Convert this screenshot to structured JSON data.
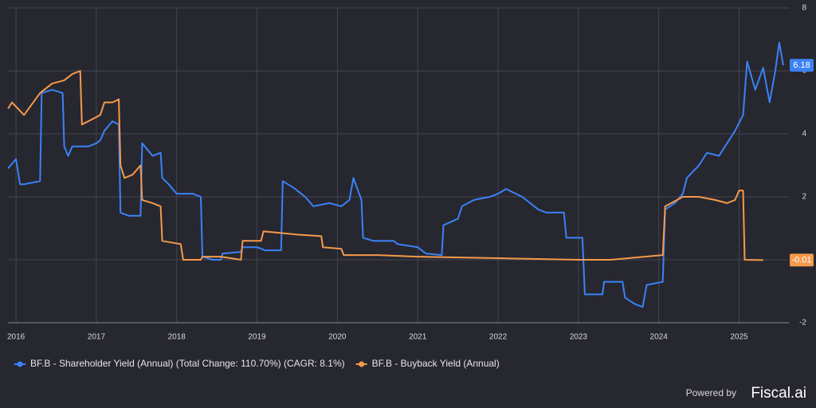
{
  "chart_data": {
    "type": "line",
    "xlim": [
      2015.9,
      2025.62
    ],
    "xticks": [
      2016,
      2017,
      2018,
      2019,
      2020,
      2021,
      2022,
      2023,
      2024,
      2025
    ],
    "ylim": [
      -2,
      8
    ],
    "yticks": [
      -2,
      0,
      2,
      4,
      6,
      8
    ],
    "grid": true,
    "series": [
      {
        "name": "BF.B - Shareholder Yield (Annual) (Total Change: 110.70%) (CAGR: 8.1%)",
        "color": "#3b82f6",
        "last_label": "6.18",
        "x": [
          2015.9,
          2016.0,
          2016.05,
          2016.1,
          2016.3,
          2016.32,
          2016.45,
          2016.58,
          2016.6,
          2016.65,
          2016.7,
          2016.9,
          2017.0,
          2017.05,
          2017.1,
          2017.2,
          2017.28,
          2017.3,
          2017.4,
          2017.55,
          2017.57,
          2017.7,
          2017.8,
          2017.82,
          2017.9,
          2018.0,
          2018.2,
          2018.3,
          2018.32,
          2018.45,
          2018.55,
          2018.57,
          2018.8,
          2018.82,
          2019.0,
          2019.1,
          2019.3,
          2019.32,
          2019.45,
          2019.6,
          2019.7,
          2019.9,
          2020.05,
          2020.15,
          2020.2,
          2020.3,
          2020.32,
          2020.45,
          2020.7,
          2020.75,
          2021.0,
          2021.1,
          2021.3,
          2021.32,
          2021.5,
          2021.55,
          2021.7,
          2021.9,
          2022.0,
          2022.1,
          2022.3,
          2022.5,
          2022.6,
          2022.82,
          2022.85,
          2023.05,
          2023.08,
          2023.3,
          2023.32,
          2023.55,
          2023.58,
          2023.7,
          2023.8,
          2023.85,
          2024.05,
          2024.08,
          2024.2,
          2024.3,
          2024.35,
          2024.5,
          2024.6,
          2024.75,
          2024.85,
          2024.95,
          2025.05,
          2025.1,
          2025.2,
          2025.3,
          2025.38,
          2025.45,
          2025.5,
          2025.55
        ],
        "values": [
          2.9,
          3.2,
          2.4,
          2.4,
          2.5,
          5.3,
          5.4,
          5.3,
          3.6,
          3.3,
          3.6,
          3.6,
          3.7,
          3.8,
          4.1,
          4.4,
          4.3,
          1.5,
          1.4,
          1.4,
          3.7,
          3.3,
          3.4,
          2.6,
          2.4,
          2.1,
          2.1,
          2.0,
          0.1,
          0.0,
          0.0,
          0.2,
          0.25,
          0.4,
          0.4,
          0.3,
          0.3,
          2.5,
          2.3,
          2.0,
          1.7,
          1.8,
          1.7,
          1.9,
          2.6,
          1.9,
          0.7,
          0.6,
          0.6,
          0.5,
          0.4,
          0.2,
          0.15,
          1.1,
          1.3,
          1.7,
          1.9,
          2.0,
          2.1,
          2.25,
          2.0,
          1.6,
          1.5,
          1.5,
          0.7,
          0.7,
          -1.1,
          -1.1,
          -0.7,
          -0.7,
          -1.2,
          -1.4,
          -1.5,
          -0.8,
          -0.7,
          1.6,
          1.8,
          2.1,
          2.6,
          3.0,
          3.4,
          3.3,
          3.7,
          4.1,
          4.6,
          6.3,
          5.4,
          6.1,
          5.0,
          6.0,
          6.9,
          6.18
        ]
      },
      {
        "name": "BF.B - Buyback Yield (Annual)",
        "color": "#f59a4a",
        "last_label": "-0.01",
        "x": [
          2015.9,
          2015.95,
          2016.1,
          2016.3,
          2016.45,
          2016.6,
          2016.7,
          2016.8,
          2016.82,
          2016.9,
          2017.05,
          2017.1,
          2017.2,
          2017.28,
          2017.3,
          2017.35,
          2017.45,
          2017.55,
          2017.57,
          2017.7,
          2017.8,
          2017.82,
          2018.05,
          2018.08,
          2018.3,
          2018.32,
          2018.55,
          2018.8,
          2018.82,
          2019.05,
          2019.08,
          2019.3,
          2019.5,
          2019.8,
          2019.82,
          2020.05,
          2020.08,
          2020.5,
          2021.0,
          2022.0,
          2023.0,
          2023.4,
          2024.05,
          2024.08,
          2024.3,
          2024.5,
          2024.7,
          2024.85,
          2024.95,
          2025.0,
          2025.05,
          2025.07,
          2025.3
        ],
        "values": [
          4.8,
          5.0,
          4.6,
          5.3,
          5.6,
          5.7,
          5.9,
          6.0,
          4.3,
          4.4,
          4.6,
          5.0,
          5.0,
          5.1,
          3.0,
          2.6,
          2.7,
          3.0,
          1.9,
          1.8,
          1.7,
          0.6,
          0.5,
          0.0,
          0.0,
          0.1,
          0.1,
          0.0,
          0.6,
          0.6,
          0.9,
          0.85,
          0.8,
          0.75,
          0.4,
          0.35,
          0.15,
          0.15,
          0.1,
          0.05,
          0.0,
          0.0,
          0.15,
          1.7,
          2.0,
          2.0,
          1.9,
          1.8,
          1.9,
          2.2,
          2.2,
          0.0,
          -0.01
        ]
      }
    ],
    "powered_by": "Powered by",
    "brand": "Fiscal.ai"
  }
}
